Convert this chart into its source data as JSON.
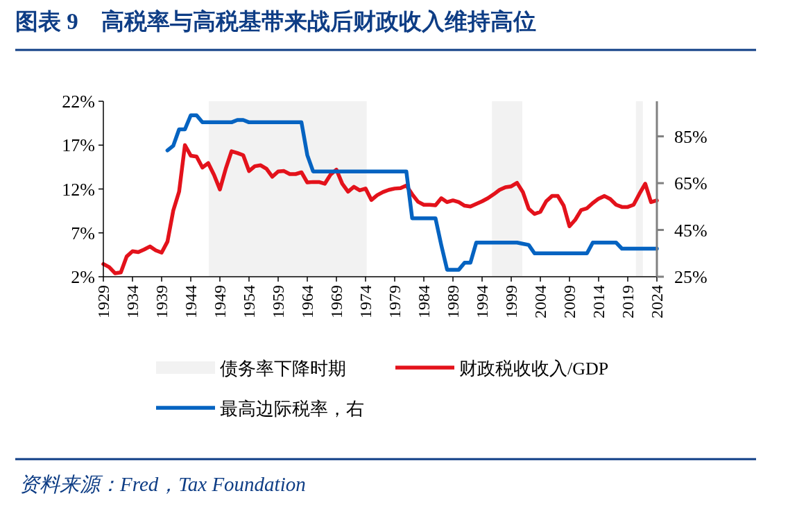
{
  "chart_data": {
    "type": "line",
    "title": "图表 9　高税率与高税基带来战后财政收入维持高位",
    "xlim": [
      1929,
      2024
    ],
    "xticks": [
      1929,
      1934,
      1939,
      1944,
      1949,
      1954,
      1959,
      1964,
      1969,
      1974,
      1979,
      1984,
      1989,
      1994,
      1999,
      2004,
      2009,
      2014,
      2019,
      2024
    ],
    "ylim": [
      2,
      22
    ],
    "yticks": [
      {
        "value": 2,
        "label": "2%"
      },
      {
        "value": 7,
        "label": "7%"
      },
      {
        "value": 12,
        "label": "12%"
      },
      {
        "value": 17,
        "label": "17%"
      },
      {
        "value": 22,
        "label": "22%"
      }
    ],
    "y2lim": [
      25,
      100
    ],
    "y2ticks": [
      {
        "value": 25,
        "label": "25%"
      },
      {
        "value": 45,
        "label": "45%"
      },
      {
        "value": 65,
        "label": "65%"
      },
      {
        "value": 85,
        "label": "85%"
      }
    ],
    "grid": false,
    "legend": "bottom",
    "marker": "none",
    "line_style": "solid",
    "bands": [
      {
        "axis": "x",
        "from": 1947.1,
        "to": 1974.2,
        "label": "债务率下降时期",
        "color": "#f2f2f2"
      },
      {
        "axis": "x",
        "from": 1995.7,
        "to": 2000.9,
        "color": "#f2f2f2"
      },
      {
        "axis": "x",
        "from": 2020.4,
        "to": 2021.6,
        "color": "#f2f2f2"
      }
    ],
    "series": [
      {
        "name": "财政税收收入/GDP",
        "color": "#e3121b",
        "x": [
          1929,
          1930,
          1931,
          1932,
          1933,
          1934,
          1935,
          1936,
          1937,
          1938,
          1939,
          1940,
          1941,
          1942,
          1943,
          1944,
          1945,
          1946,
          1947,
          1948,
          1949,
          1950,
          1951,
          1952,
          1953,
          1954,
          1955,
          1956,
          1957,
          1958,
          1959,
          1960,
          1961,
          1962,
          1963,
          1964,
          1965,
          1966,
          1967,
          1968,
          1969,
          1970,
          1971,
          1972,
          1973,
          1974,
          1975,
          1976,
          1977,
          1978,
          1979,
          1980,
          1981,
          1982,
          1983,
          1984,
          1985,
          1986,
          1987,
          1988,
          1989,
          1990,
          1991,
          1992,
          1993,
          1994,
          1995,
          1996,
          1997,
          1998,
          1999,
          2000,
          2001,
          2002,
          2003,
          2004,
          2005,
          2006,
          2007,
          2008,
          2009,
          2010,
          2011,
          2012,
          2013,
          2014,
          2015,
          2016,
          2017,
          2018,
          2019,
          2020,
          2021,
          2022,
          2023,
          2024
        ],
        "values": [
          3.45,
          3.1,
          2.4,
          2.5,
          4.3,
          4.9,
          4.8,
          5.1,
          5.45,
          5.0,
          4.75,
          6.0,
          9.55,
          11.7,
          17.0,
          15.8,
          15.7,
          14.45,
          14.95,
          13.6,
          11.95,
          14.3,
          16.3,
          16.1,
          15.85,
          14.05,
          14.6,
          14.7,
          14.3,
          13.4,
          14.0,
          14.05,
          13.7,
          13.7,
          13.9,
          12.75,
          12.8,
          12.8,
          12.6,
          13.65,
          14.2,
          12.6,
          11.7,
          12.25,
          11.85,
          12.05,
          10.75,
          11.3,
          11.65,
          11.9,
          12.05,
          12.1,
          12.4,
          11.4,
          10.55,
          10.2,
          10.2,
          10.15,
          10.95,
          10.5,
          10.7,
          10.5,
          10.1,
          10.0,
          10.3,
          10.6,
          10.95,
          11.4,
          11.9,
          12.2,
          12.3,
          12.7,
          11.65,
          9.75,
          9.15,
          9.4,
          10.6,
          11.2,
          11.2,
          10.1,
          7.75,
          8.5,
          9.6,
          9.8,
          10.4,
          10.9,
          11.2,
          10.85,
          10.2,
          9.95,
          9.95,
          10.2,
          11.45,
          12.6,
          10.5,
          10.7
        ]
      },
      {
        "name": "最高边际税率，右",
        "color": "#0563c1",
        "axis": "y2",
        "x": [
          1940,
          1941,
          1942,
          1943,
          1944,
          1945,
          1946,
          1951,
          1952,
          1953,
          1954,
          1963,
          1964,
          1965,
          1981,
          1982,
          1986,
          1987,
          1988,
          1990,
          1991,
          1992,
          1993,
          2000,
          2001,
          2002,
          2003,
          2012,
          2013,
          2017,
          2018,
          2024
        ],
        "values": [
          79,
          81,
          88,
          88,
          94,
          94,
          91,
          91,
          92,
          92,
          91,
          91,
          77,
          70,
          70,
          50,
          50,
          38.5,
          28,
          28,
          31,
          31,
          39.6,
          39.6,
          39.1,
          38.6,
          35,
          35,
          39.6,
          39.6,
          37,
          37
        ]
      }
    ],
    "annotations": [
      "资料来源：Fred，Tax Foundation"
    ]
  }
}
